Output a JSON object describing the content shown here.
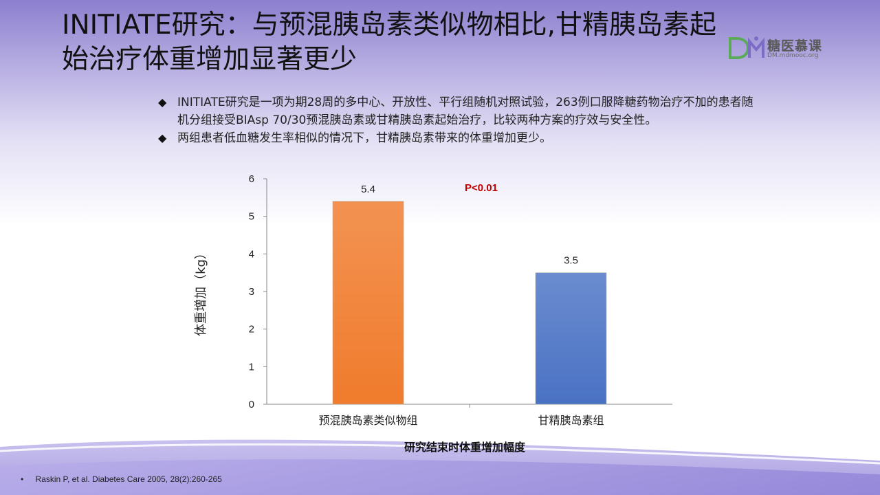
{
  "slide": {
    "title": "INITIATE研究：与预混胰岛素类似物相比,甘精胰岛素起始治疗体重增加显著更少",
    "logo": {
      "name": "糖医慕课",
      "url": "DM.mdmooc.org"
    },
    "bullets": [
      "INITIATE研究是一项为期28周的多中心、开放性、平行组随机对照试验，263例口服降糖药物治疗不加的患者随机分组接受BIAsp 70/30预混胰岛素或甘精胰岛素起始治疗，比较两种方案的疗效与安全性。",
      "两组患者低血糖发生率相似的情况下，甘精胰岛素带来的体重增加更少。"
    ],
    "bullet_symbol": "◆",
    "footnote_bullet": "•",
    "footnote": "Raskin P, et al. Diabetes Care 2005, 28(2):260-265"
  },
  "chart_data": {
    "type": "bar",
    "categories": [
      "预混胰岛素类似物组",
      "甘精胰岛素组"
    ],
    "values": [
      5.4,
      3.5
    ],
    "data_labels": [
      "5.4",
      "3.5"
    ],
    "ylabel": "体重增加（kg）",
    "xlabel": "研究结束时体重增加幅度",
    "ylim": [
      0,
      6
    ],
    "yticks": [
      "0",
      "1",
      "2",
      "3",
      "4",
      "5",
      "6"
    ],
    "annotation": "P<0.01",
    "grid": false,
    "bar_colors": [
      "#f07b2c",
      "#4a72c4"
    ],
    "annotation_color": "#c00000"
  }
}
